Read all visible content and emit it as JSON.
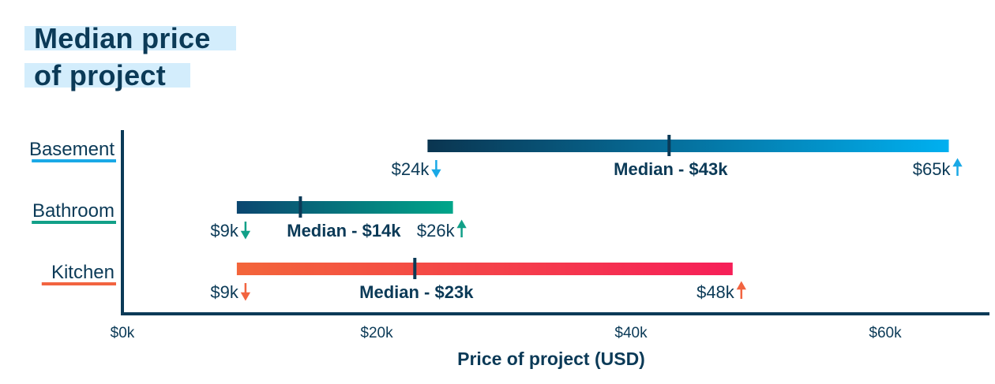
{
  "chart_data": {
    "type": "range-bar",
    "title": "Median price of project",
    "title_lines": [
      "Median price",
      "of project"
    ],
    "xlabel": "Price of project (USD)",
    "ylabel": "",
    "xlim": [
      0,
      68
    ],
    "x_ticks": [
      0,
      20,
      40,
      60
    ],
    "x_tick_labels": [
      "$0k",
      "$20k",
      "$40k",
      "$60k"
    ],
    "grid": false,
    "unit": "thousand USD",
    "categories": [
      "Basement",
      "Bathroom",
      "Kitchen"
    ],
    "series": [
      {
        "category": "Basement",
        "min": 24,
        "median": 43,
        "max": 65,
        "min_label": "$24k",
        "median_label": "Median - $43k",
        "max_label": "$65k",
        "colors": {
          "start": "#0a3550",
          "end": "#00b0f0",
          "accent": "#1aa9e6"
        }
      },
      {
        "category": "Bathroom",
        "min": 9,
        "median": 14,
        "max": 26,
        "min_label": "$9k",
        "median_label": "Median - $14k",
        "max_label": "$26k",
        "colors": {
          "start": "#0b4670",
          "end": "#00a68a",
          "accent": "#12a088"
        }
      },
      {
        "category": "Kitchen",
        "min": 9,
        "median": 23,
        "max": 48,
        "min_label": "$9k",
        "median_label": "Median - $23k",
        "max_label": "$48k",
        "colors": {
          "start": "#f3653a",
          "end": "#f61f58",
          "accent": "#f26440"
        }
      }
    ],
    "colors": {
      "text": "#0b3a57",
      "title_highlight": "#d3edfc",
      "axis": "#0b3a57"
    }
  }
}
